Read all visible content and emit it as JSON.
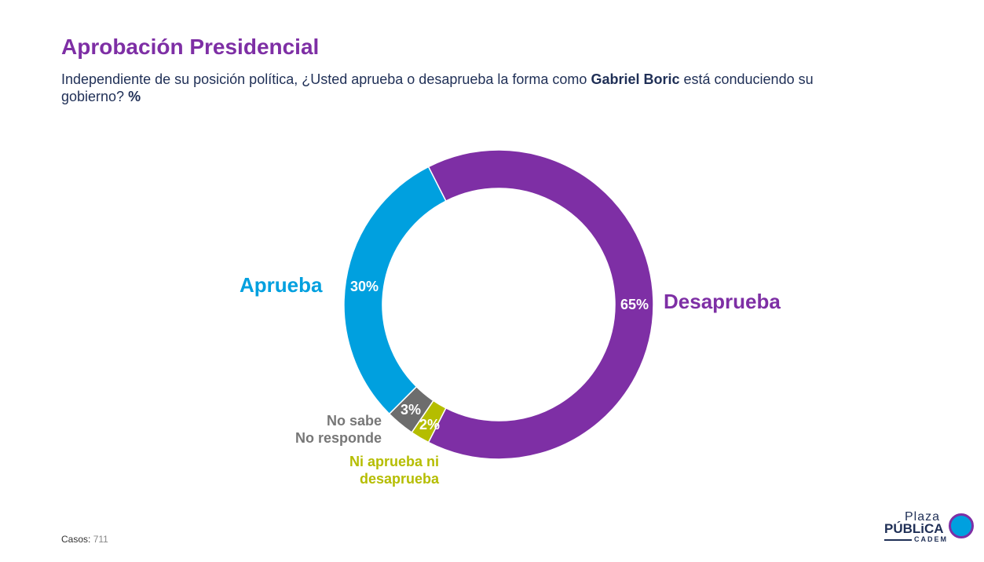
{
  "header": {
    "title": "Aprobación Presidencial",
    "subtitle_pre": "Independiente de su posición política, ¿Usted aprueba o desaprueba la forma como ",
    "subtitle_bold": "Gabriel Boric",
    "subtitle_post": " está conduciendo su gobierno? ",
    "subtitle_unit": "%"
  },
  "chart_data": {
    "type": "pie",
    "donut": true,
    "title": "Aprobación Presidencial",
    "slices": [
      {
        "label": "Desaprueba",
        "value": 65,
        "value_label": "65%",
        "color": "#7e2fa5"
      },
      {
        "label": "Ni aprueba ni desaprueba",
        "value": 2,
        "value_label": "2%",
        "color": "#b5bd00"
      },
      {
        "label": "No sabe No responde",
        "value": 3,
        "value_label": "3%",
        "color": "#6d6d6d"
      },
      {
        "label": "Aprueba",
        "value": 30,
        "value_label": "30%",
        "color": "#00a0df"
      }
    ]
  },
  "footer": {
    "casos_label": "Casos",
    "casos_value": "711"
  },
  "logo": {
    "plaza": "Plaza",
    "publica": "PÚBLiCA",
    "cadem": "CADEM"
  }
}
